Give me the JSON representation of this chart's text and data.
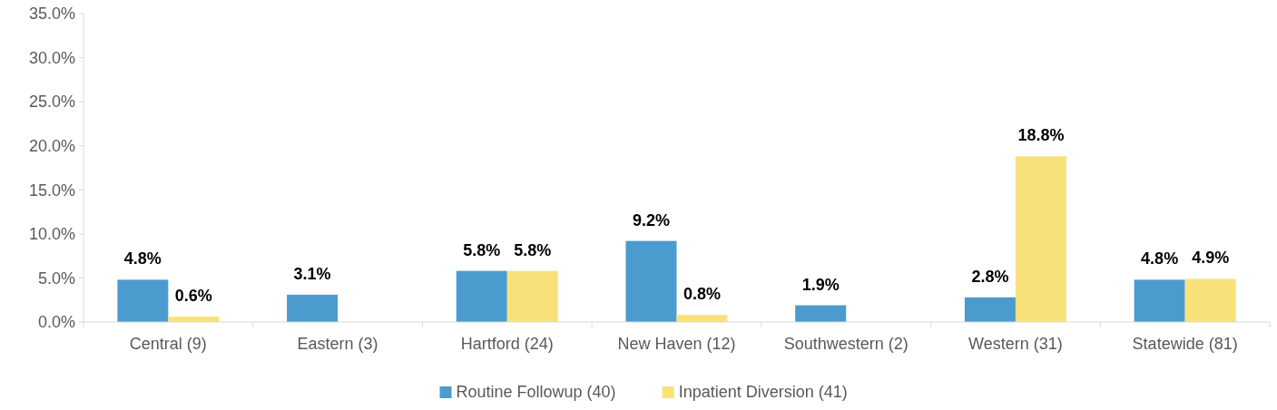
{
  "chart_data": {
    "type": "bar",
    "categories": [
      "Central (9)",
      "Eastern (3)",
      "Hartford (24)",
      "New Haven (12)",
      "Southwestern (2)",
      "Western (31)",
      "Statewide (81)"
    ],
    "series": [
      {
        "name": "Routine Followup (40)",
        "color": "#4b9bcf",
        "values": [
          4.8,
          3.1,
          5.8,
          9.2,
          1.9,
          2.8,
          4.8
        ],
        "value_labels": [
          "4.8%",
          "3.1%",
          "5.8%",
          "9.2%",
          "1.9%",
          "2.8%",
          "4.8%"
        ]
      },
      {
        "name": "Inpatient Diversion (41)",
        "color": "#f9e17a",
        "values": [
          0.6,
          null,
          5.8,
          0.8,
          null,
          18.8,
          4.9
        ],
        "value_labels": [
          "0.6%",
          null,
          "5.8%",
          "0.8%",
          null,
          "18.8%",
          "4.9%"
        ]
      }
    ],
    "ylim": [
      0,
      35
    ],
    "yticks": [
      {
        "value": 0,
        "label": "0.0%"
      },
      {
        "value": 5,
        "label": "5.0%"
      },
      {
        "value": 10,
        "label": "10.0%"
      },
      {
        "value": 15,
        "label": "15.0%"
      },
      {
        "value": 20,
        "label": "20.0%"
      },
      {
        "value": 25,
        "label": "25.0%"
      },
      {
        "value": 30,
        "label": "30.0%"
      },
      {
        "value": 35,
        "label": "35.0%"
      }
    ],
    "grid": false,
    "legend": "bottom"
  }
}
